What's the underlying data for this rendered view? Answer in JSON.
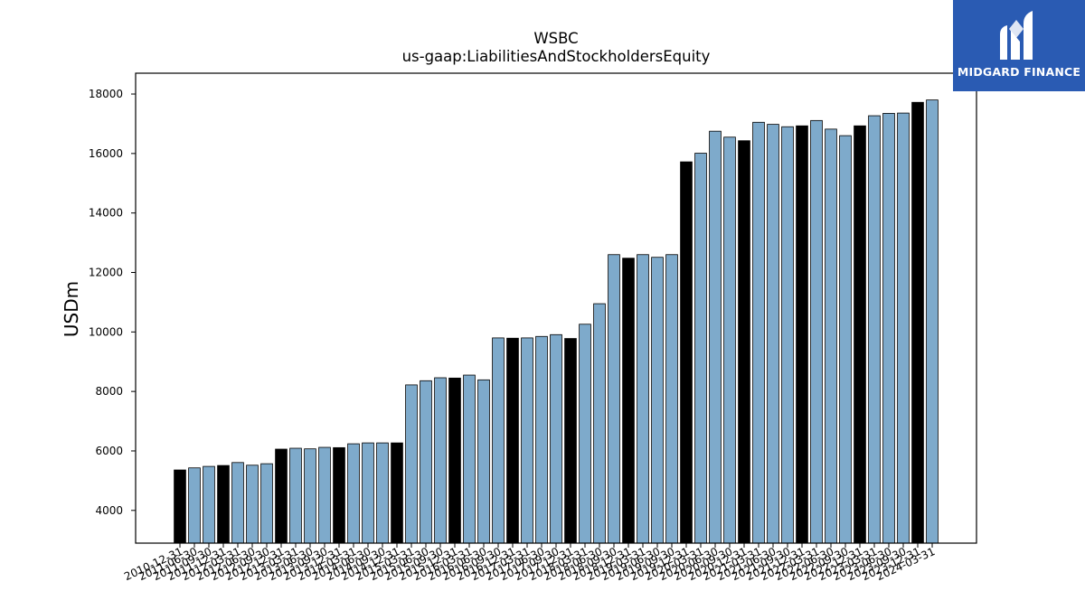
{
  "chart_data": {
    "type": "bar",
    "title": "WSBC",
    "subtitle": "us-gaap:LiabilitiesAndStockholdersEquity",
    "xlabel": "",
    "ylabel": "USDm",
    "ylim": [
      2900,
      18700
    ],
    "yticks": [
      4000,
      6000,
      8000,
      10000,
      12000,
      14000,
      16000,
      18000
    ],
    "grid": false,
    "colors": {
      "quarterly": "#7eaacb",
      "annual": "#000000",
      "edge": "#000000"
    },
    "categories": [
      "2010-12-31",
      "2011-06-30",
      "2011-09-30",
      "2011-12-31",
      "2012-03-31",
      "2012-06-30",
      "2012-09-30",
      "2012-12-31",
      "2013-03-31",
      "2013-06-30",
      "2013-09-30",
      "2013-12-31",
      "2014-03-31",
      "2014-06-30",
      "2014-09-30",
      "2014-12-31",
      "2015-03-31",
      "2015-06-30",
      "2015-09-30",
      "2015-12-31",
      "2016-03-31",
      "2016-06-30",
      "2016-09-30",
      "2016-12-31",
      "2017-03-31",
      "2017-06-30",
      "2017-09-30",
      "2017-12-31",
      "2018-03-31",
      "2018-06-30",
      "2018-09-30",
      "2018-12-31",
      "2019-03-31",
      "2019-06-30",
      "2019-09-30",
      "2019-12-31",
      "2020-03-31",
      "2020-06-30",
      "2020-09-30",
      "2020-12-31",
      "2021-03-31",
      "2021-06-30",
      "2021-09-30",
      "2021-12-31",
      "2022-03-31",
      "2022-06-30",
      "2022-09-30",
      "2022-12-31",
      "2023-03-31",
      "2023-06-30",
      "2023-09-30",
      "2023-12-31",
      "2024-03-31"
    ],
    "values": [
      5360,
      5430,
      5480,
      5510,
      5610,
      5520,
      5570,
      6060,
      6090,
      6070,
      6120,
      6110,
      6240,
      6270,
      6270,
      6270,
      8220,
      8360,
      8460,
      8450,
      8550,
      8390,
      9800,
      9790,
      9800,
      9850,
      9910,
      9780,
      10260,
      10950,
      12600,
      12480,
      12600,
      12510,
      12600,
      15720,
      16010,
      16750,
      16550,
      16430,
      17050,
      16980,
      16900,
      16930,
      17110,
      16820,
      16600,
      16930,
      17270,
      17350,
      17360,
      17720,
      17800
    ],
    "annual_flags": [
      1,
      0,
      0,
      1,
      0,
      0,
      0,
      1,
      0,
      0,
      0,
      1,
      0,
      0,
      0,
      1,
      0,
      0,
      0,
      1,
      0,
      0,
      0,
      1,
      0,
      0,
      0,
      1,
      0,
      0,
      0,
      1,
      0,
      0,
      0,
      1,
      0,
      0,
      0,
      1,
      0,
      0,
      0,
      1,
      0,
      0,
      0,
      1,
      0,
      0,
      0,
      1,
      0
    ]
  },
  "logo": {
    "text": "MIDGARD FINANCE"
  }
}
